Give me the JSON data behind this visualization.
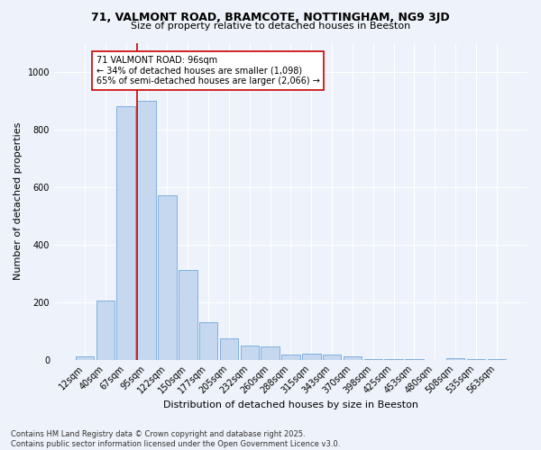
{
  "title1": "71, VALMONT ROAD, BRAMCOTE, NOTTINGHAM, NG9 3JD",
  "title2": "Size of property relative to detached houses in Beeston",
  "xlabel": "Distribution of detached houses by size in Beeston",
  "ylabel": "Number of detached properties",
  "categories": [
    "12sqm",
    "40sqm",
    "67sqm",
    "95sqm",
    "122sqm",
    "150sqm",
    "177sqm",
    "205sqm",
    "232sqm",
    "260sqm",
    "288sqm",
    "315sqm",
    "343sqm",
    "370sqm",
    "398sqm",
    "425sqm",
    "453sqm",
    "480sqm",
    "508sqm",
    "535sqm",
    "563sqm"
  ],
  "values": [
    10,
    205,
    880,
    900,
    570,
    310,
    130,
    75,
    48,
    45,
    17,
    20,
    17,
    10,
    3,
    2,
    1,
    0,
    5,
    1,
    3
  ],
  "bar_color": "#c5d8f0",
  "bar_edge_color": "#5b9bd5",
  "vline_color": "#cc0000",
  "annotation_text": "71 VALMONT ROAD: 96sqm\n← 34% of detached houses are smaller (1,098)\n65% of semi-detached houses are larger (2,066) →",
  "annotation_box_color": "#ffffff",
  "annotation_box_edge": "#cc0000",
  "footnote": "Contains HM Land Registry data © Crown copyright and database right 2025.\nContains public sector information licensed under the Open Government Licence v3.0.",
  "bg_color": "#eef2fa",
  "ylim": [
    0,
    1100
  ],
  "yticks": [
    0,
    200,
    400,
    600,
    800,
    1000
  ]
}
